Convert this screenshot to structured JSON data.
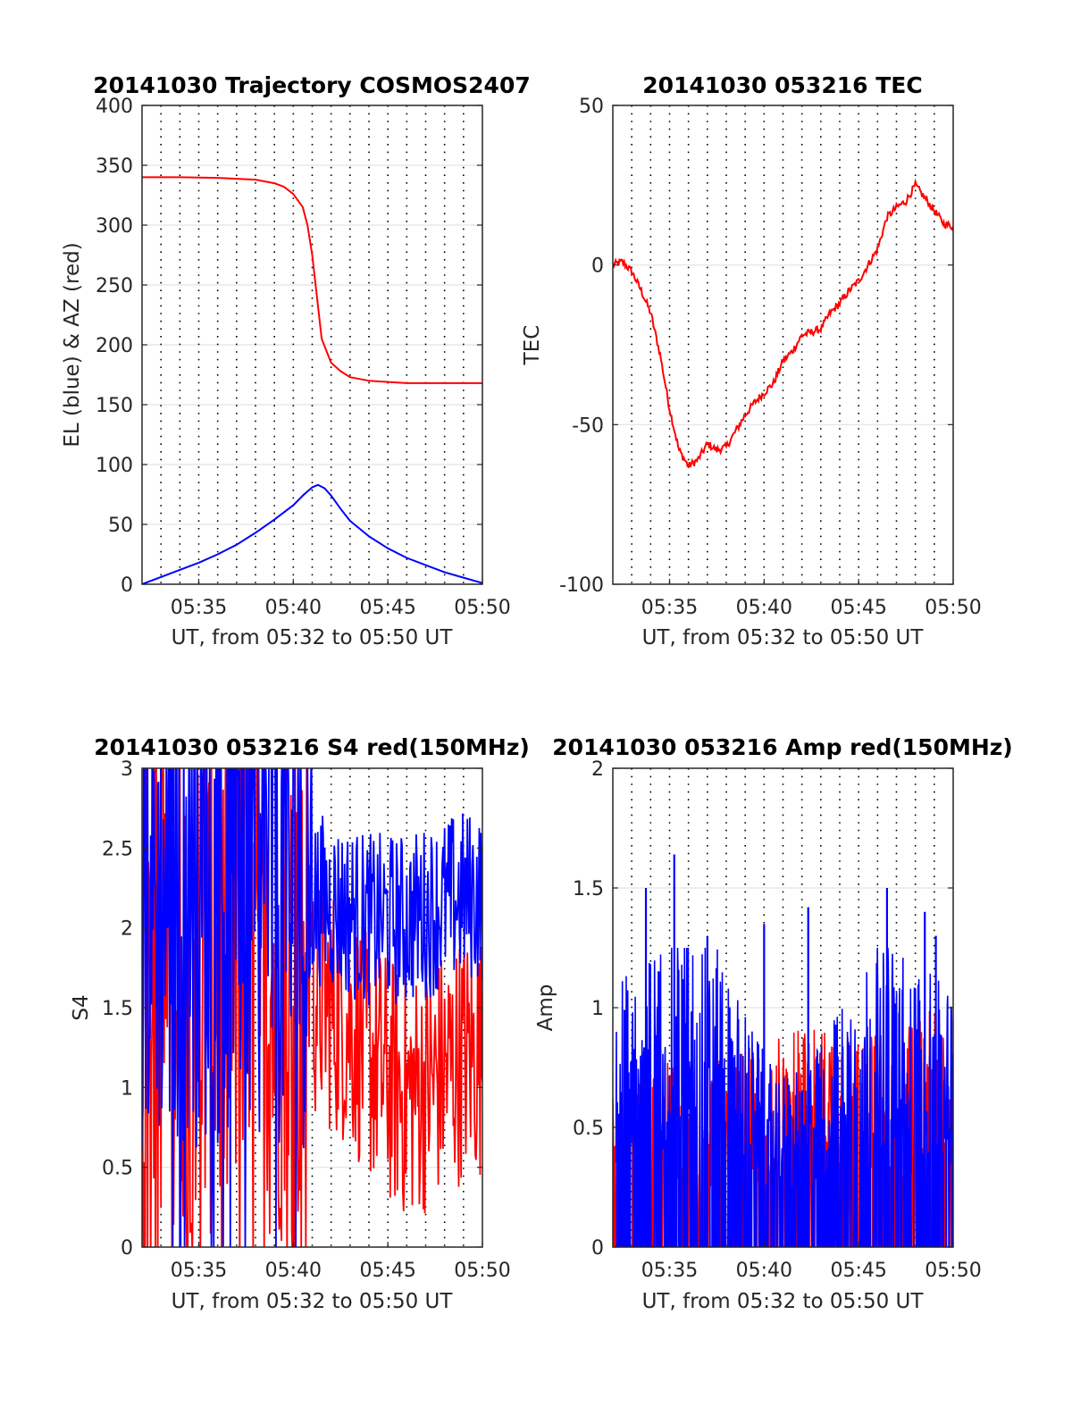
{
  "chart_data": [
    {
      "type": "line",
      "title": "20141030 Trajectory COSMOS2407",
      "xlabel": "UT, from 05:32 to 05:50 UT",
      "ylabel": "EL (blue) & AZ (red)",
      "x_ticks": [
        "05:35",
        "05:40",
        "05:45",
        "05:50"
      ],
      "y_ticks": [
        "0",
        "50",
        "100",
        "150",
        "200",
        "250",
        "300",
        "350",
        "400"
      ],
      "xlim": [
        "05:32",
        "05:50"
      ],
      "ylim": [
        0,
        400
      ],
      "grid": "horizontal lines plus dotted vertical lines every minute",
      "series": [
        {
          "color": "#ff0000",
          "x": [
            "05:32",
            "05:34",
            "05:36",
            "05:38",
            "05:39",
            "05:39:30",
            "05:40",
            "05:40:30",
            "05:40:45",
            "05:41",
            "05:41:15",
            "05:41:30",
            "05:42",
            "05:42:30",
            "05:43",
            "05:44",
            "05:46",
            "05:48",
            "05:50"
          ],
          "values": [
            340,
            340,
            339.5,
            338,
            335,
            332,
            326,
            315,
            300,
            275,
            240,
            205,
            185,
            178,
            173,
            170,
            168,
            168,
            168
          ]
        },
        {
          "color": "#0000ff",
          "x": [
            "05:32",
            "05:34",
            "05:35",
            "05:36",
            "05:37",
            "05:38",
            "05:39",
            "05:40",
            "05:40:30",
            "05:41",
            "05:41:18",
            "05:41:40",
            "05:42",
            "05:42:30",
            "05:43",
            "05:44",
            "05:45",
            "05:46",
            "05:48",
            "05:50"
          ],
          "values": [
            0,
            12,
            18,
            25,
            33,
            43,
            54,
            66,
            74,
            81,
            83,
            80,
            74,
            63,
            53,
            40,
            30,
            22,
            10,
            1
          ]
        }
      ]
    },
    {
      "type": "line",
      "title": "20141030 053216 TEC",
      "xlabel": "UT, from 05:32 to 05:50 UT",
      "ylabel": "TEC",
      "x_ticks": [
        "05:35",
        "05:40",
        "05:45",
        "05:50"
      ],
      "y_ticks": [
        "-100",
        "-50",
        "0",
        "50"
      ],
      "xlim": [
        "05:32",
        "05:50"
      ],
      "ylim": [
        -100,
        50
      ],
      "grid": "horizontal lines plus dotted vertical lines every minute",
      "series": [
        {
          "color": "#ff0000",
          "x": [
            "05:32",
            "05:32:30",
            "05:33",
            "05:33:30",
            "05:34",
            "05:34:30",
            "05:35",
            "05:35:30",
            "05:36",
            "05:36:30",
            "05:37",
            "05:37:30",
            "05:38",
            "05:38:30",
            "05:39",
            "05:39:30",
            "05:40",
            "05:40:30",
            "05:41",
            "05:41:30",
            "05:42",
            "05:42:30",
            "05:43",
            "05:43:30",
            "05:44",
            "05:44:30",
            "05:45",
            "05:45:30",
            "05:46",
            "05:46:30",
            "05:47",
            "05:47:30",
            "05:48",
            "05:48:30",
            "05:49",
            "05:49:30",
            "05:50"
          ],
          "values": [
            0,
            1,
            -2,
            -8,
            -15,
            -28,
            -45,
            -58,
            -63,
            -61,
            -56,
            -58,
            -57,
            -52,
            -47,
            -43,
            -40,
            -37,
            -30,
            -27,
            -22,
            -21,
            -20,
            -15,
            -12,
            -8,
            -5,
            0,
            5,
            15,
            18,
            20,
            25,
            21,
            17,
            13,
            12
          ]
        }
      ]
    },
    {
      "type": "line",
      "title": "20141030 053216 S4 red(150MHz)",
      "xlabel": "UT, from 05:32 to 05:50 UT",
      "ylabel": "S4",
      "x_ticks": [
        "05:35",
        "05:40",
        "05:45",
        "05:50"
      ],
      "y_ticks": [
        "0",
        "0.5",
        "1",
        "1.5",
        "2",
        "2.5",
        "3"
      ],
      "xlim": [
        "05:32",
        "05:50"
      ],
      "ylim": [
        0,
        3
      ],
      "grid": "horizontal lines plus dotted vertical lines every minute",
      "series": [
        {
          "color": "#ff0000",
          "x": [
            "05:32",
            "05:34",
            "05:36",
            "05:38",
            "05:40",
            "05:41",
            "05:42",
            "05:43",
            "05:44",
            "05:45",
            "05:46",
            "05:47",
            "05:48",
            "05:49",
            "05:50"
          ],
          "values": [
            1.8,
            1.7,
            1.6,
            1.6,
            1.6,
            1.6,
            1.5,
            1.4,
            1.2,
            1.05,
            0.95,
            1.0,
            1.1,
            1.2,
            1.2
          ]
        },
        {
          "color": "#0000ff",
          "x": [
            "05:32",
            "05:34",
            "05:36",
            "05:38",
            "05:40",
            "05:41",
            "05:42",
            "05:43",
            "05:44",
            "05:45",
            "05:46",
            "05:47",
            "05:48",
            "05:49",
            "05:50"
          ],
          "values": [
            2.2,
            2.2,
            2.2,
            2.2,
            2.2,
            2.2,
            2.15,
            2.1,
            2.05,
            2.05,
            2.05,
            2.1,
            2.15,
            2.2,
            2.2
          ]
        }
      ]
    },
    {
      "type": "line",
      "title": "20141030 053216 Amp red(150MHz)",
      "xlabel": "UT, from 05:32 to 05:50 UT",
      "ylabel": "Amp",
      "x_ticks": [
        "05:35",
        "05:40",
        "05:45",
        "05:50"
      ],
      "y_ticks": [
        "0",
        "0.5",
        "1",
        "1.5",
        "2"
      ],
      "xlim": [
        "05:32",
        "05:50"
      ],
      "ylim": [
        0,
        2
      ],
      "grid": "horizontal lines plus dotted vertical lines every minute",
      "series": [
        {
          "color": "#ff0000",
          "x": [
            "05:32",
            "05:35",
            "05:38",
            "05:41",
            "05:44",
            "05:47",
            "05:50"
          ],
          "values": [
            0.5,
            0.6,
            0.6,
            0.7,
            0.7,
            0.7,
            0.8
          ]
        },
        {
          "color": "#0000ff",
          "x": [
            "05:33:45",
            "05:35:15",
            "05:37",
            "05:40",
            "05:42:20",
            "05:46:30",
            "05:48:30",
            "05:49:05"
          ],
          "values": [
            1.5,
            1.64,
            1.3,
            1.35,
            1.42,
            1.5,
            1.4,
            1.3
          ]
        }
      ]
    }
  ]
}
